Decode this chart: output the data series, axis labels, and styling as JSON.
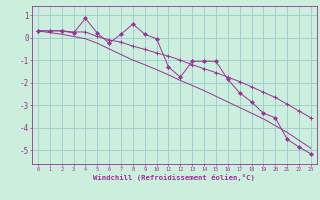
{
  "xlabel": "Windchill (Refroidissement éolien,°C)",
  "bg_color": "#cceedd",
  "grid_color": "#99cccc",
  "line_color": "#993399",
  "axis_color": "#993399",
  "xlim": [
    -0.5,
    23.5
  ],
  "ylim": [
    -5.6,
    1.4
  ],
  "yticks": [
    -5,
    -4,
    -3,
    -2,
    -1,
    0,
    1
  ],
  "xticks": [
    0,
    1,
    2,
    3,
    4,
    5,
    6,
    7,
    8,
    9,
    10,
    11,
    12,
    13,
    14,
    15,
    16,
    17,
    18,
    19,
    20,
    21,
    22,
    23
  ],
  "data_x": [
    0,
    1,
    2,
    3,
    4,
    5,
    6,
    7,
    8,
    9,
    10,
    11,
    12,
    13,
    14,
    15,
    16,
    17,
    18,
    19,
    20,
    21,
    22,
    23
  ],
  "data_y1": [
    0.3,
    0.3,
    0.3,
    0.2,
    0.85,
    0.2,
    -0.25,
    0.15,
    0.6,
    0.15,
    -0.05,
    -1.3,
    -1.75,
    -1.05,
    -1.05,
    -1.05,
    -1.85,
    -2.45,
    -2.85,
    -3.35,
    -3.55,
    -4.5,
    -4.85,
    -5.15
  ],
  "data_y2": [
    0.3,
    0.3,
    0.3,
    0.25,
    0.25,
    0.05,
    -0.1,
    -0.2,
    -0.38,
    -0.52,
    -0.68,
    -0.82,
    -1.0,
    -1.2,
    -1.38,
    -1.55,
    -1.75,
    -1.95,
    -2.18,
    -2.42,
    -2.65,
    -2.95,
    -3.25,
    -3.55
  ],
  "data_y3": [
    0.3,
    0.22,
    0.15,
    0.05,
    -0.05,
    -0.25,
    -0.5,
    -0.75,
    -1.0,
    -1.2,
    -1.42,
    -1.65,
    -1.9,
    -2.12,
    -2.35,
    -2.6,
    -2.85,
    -3.1,
    -3.35,
    -3.6,
    -3.9,
    -4.2,
    -4.55,
    -4.9
  ]
}
